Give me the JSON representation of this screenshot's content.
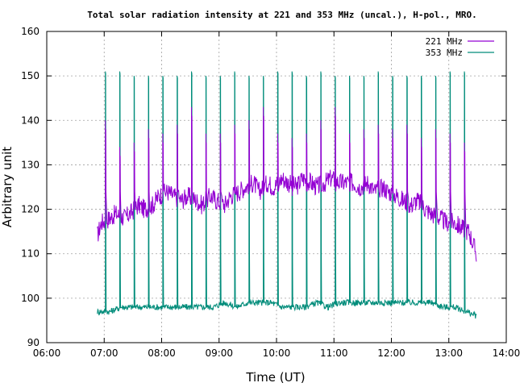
{
  "chart_data": {
    "type": "line",
    "title": "Total solar radiation intensity at 221 and 353 MHz (uncal.), H-pol., MRO.",
    "xlabel": "Time (UT)",
    "ylabel": "Arbitrary unit",
    "xlim": [
      6.0,
      14.0
    ],
    "ylim": [
      90,
      160
    ],
    "x_ticks": [
      "06:00",
      "07:00",
      "08:00",
      "09:00",
      "10:00",
      "11:00",
      "12:00",
      "13:00",
      "14:00"
    ],
    "y_ticks": [
      "90",
      "100",
      "110",
      "120",
      "130",
      "140",
      "150",
      "160"
    ],
    "grid": true,
    "legend_position": "top-right",
    "spike_times": [
      7.02,
      7.27,
      7.52,
      7.77,
      8.02,
      8.27,
      8.52,
      8.77,
      9.02,
      9.27,
      9.52,
      9.77,
      10.02,
      10.27,
      10.52,
      10.77,
      11.02,
      11.27,
      11.52,
      11.77,
      12.02,
      12.27,
      12.52,
      12.77,
      13.02,
      13.27
    ],
    "series": [
      {
        "name": "221 MHz",
        "color": "#9400d3",
        "x": [
          6.88,
          6.95,
          7.1,
          7.2,
          7.35,
          7.45,
          7.6,
          7.7,
          7.85,
          7.95,
          8.1,
          8.2,
          8.35,
          8.45,
          8.6,
          8.7,
          8.85,
          8.95,
          9.1,
          9.2,
          9.35,
          9.45,
          9.6,
          9.7,
          9.85,
          9.95,
          10.1,
          10.2,
          10.35,
          10.45,
          10.6,
          10.7,
          10.85,
          10.95,
          11.1,
          11.2,
          11.35,
          11.45,
          11.6,
          11.7,
          11.85,
          11.95,
          12.1,
          12.2,
          12.35,
          12.45,
          12.6,
          12.7,
          12.85,
          12.95,
          13.1,
          13.2,
          13.35,
          13.48
        ],
        "y": [
          114,
          117,
          118,
          119,
          118,
          119,
          121,
          120,
          121,
          123,
          124,
          123,
          122,
          123,
          122,
          121,
          123,
          122,
          121,
          123,
          124,
          125,
          126,
          124,
          126,
          125,
          127,
          126,
          125,
          127,
          126,
          125,
          126,
          127,
          126,
          126,
          126,
          125,
          126,
          124,
          125,
          124,
          123,
          122,
          121,
          122,
          120,
          119,
          118,
          117,
          117,
          116,
          115,
          110
        ],
        "spike_peaks": [
          140,
          134,
          135,
          138,
          137,
          139,
          143,
          137,
          137,
          139,
          140,
          143,
          137,
          136,
          137,
          140,
          143,
          137,
          138,
          139,
          138,
          139,
          136,
          138,
          137,
          135
        ]
      },
      {
        "name": "353 MHz",
        "color": "#008c7a",
        "x": [
          6.88,
          7.1,
          7.3,
          7.5,
          7.7,
          7.9,
          8.1,
          8.3,
          8.5,
          8.7,
          8.9,
          9.1,
          9.3,
          9.5,
          9.7,
          9.9,
          10.1,
          10.3,
          10.5,
          10.7,
          10.9,
          11.1,
          11.3,
          11.5,
          11.7,
          11.9,
          12.1,
          12.3,
          12.5,
          12.7,
          12.9,
          13.1,
          13.3,
          13.48
        ],
        "y": [
          97,
          97,
          98,
          98,
          98,
          98,
          98,
          98,
          98,
          98,
          98,
          99,
          98,
          99,
          99,
          99,
          98,
          98,
          98,
          99,
          98,
          99,
          99,
          99,
          99,
          99,
          99,
          99,
          99,
          99,
          98,
          98,
          97,
          96
        ],
        "spike_peaks": [
          151,
          151,
          150,
          150,
          150,
          150,
          151,
          150,
          150,
          151,
          150,
          150,
          151,
          151,
          150,
          151,
          150,
          150,
          150,
          151,
          150,
          150,
          150,
          150,
          151,
          151
        ]
      }
    ]
  }
}
